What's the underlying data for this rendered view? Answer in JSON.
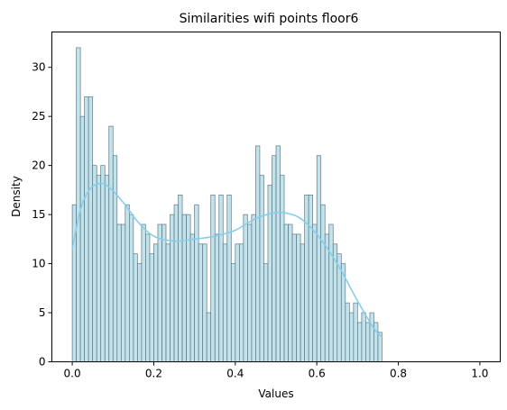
{
  "chart_data": {
    "type": "bar",
    "title": "Similarities wifi points floor6",
    "xlabel": "Values",
    "ylabel": "Density",
    "xlim": [
      -0.05,
      1.05
    ],
    "ylim": [
      0,
      33.6
    ],
    "xticks": [
      0.0,
      0.2,
      0.4,
      0.6,
      0.8,
      1.0
    ],
    "xtick_labels": [
      "0.0",
      "0.2",
      "0.4",
      "0.6",
      "0.8",
      "1.0"
    ],
    "yticks": [
      0,
      5,
      10,
      15,
      20,
      25,
      30
    ],
    "ytick_labels": [
      "0",
      "5",
      "10",
      "15",
      "20",
      "25",
      "30"
    ],
    "grid": false,
    "bin_width": 0.01,
    "bin_start": 0.0,
    "values": [
      16,
      32,
      25,
      27,
      27,
      20,
      19,
      20,
      19,
      24,
      21,
      14,
      14,
      16,
      15,
      11,
      10,
      14,
      13,
      11,
      12,
      14,
      14,
      12,
      15,
      16,
      17,
      15,
      15,
      13,
      16,
      12,
      12,
      5,
      17,
      13,
      17,
      12,
      17,
      10,
      12,
      12,
      15,
      14,
      15,
      22,
      19,
      10,
      18,
      21,
      22,
      19,
      14,
      14,
      13,
      13,
      12,
      17,
      17,
      14,
      21,
      16,
      13,
      14,
      12,
      11,
      10,
      6,
      5,
      6,
      4,
      5,
      4,
      5,
      4,
      3
    ],
    "kde": {
      "x": [
        0.0,
        0.02,
        0.04,
        0.06,
        0.08,
        0.1,
        0.13,
        0.16,
        0.2,
        0.25,
        0.3,
        0.35,
        0.4,
        0.45,
        0.5,
        0.53,
        0.56,
        0.6,
        0.65,
        0.7,
        0.74,
        0.76
      ],
      "y": [
        11.5,
        15.5,
        17.4,
        18.1,
        18.1,
        17.4,
        16,
        14.3,
        12.8,
        12.3,
        12.5,
        12.8,
        13.4,
        14.6,
        15.2,
        15.1,
        14.6,
        13,
        10,
        6.2,
        3.4,
        2.5
      ]
    },
    "colors": {
      "bar_fill": "#add8e6",
      "bar_stroke": "#5f7a85",
      "kde_line": "#87ceeb"
    }
  }
}
